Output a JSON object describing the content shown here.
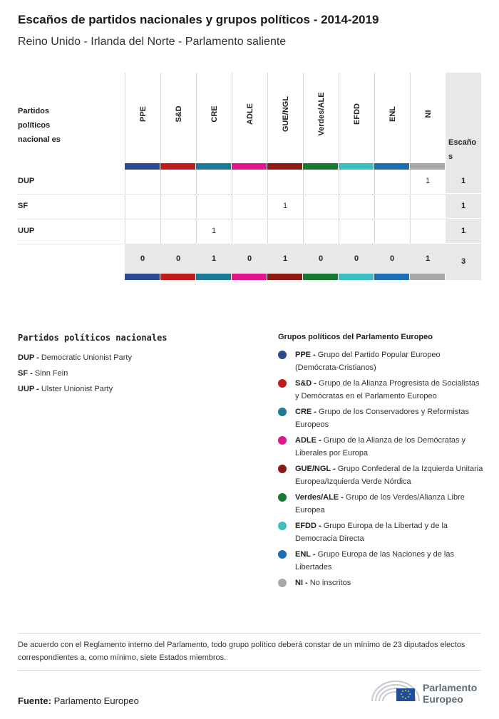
{
  "title": "Escaños de partidos nacionales y grupos políticos - 2014-2019",
  "subtitle": "Reino Unido - Irlanda del Norte - Parlamento saliente",
  "table": {
    "row_header": "Partidos políticos nacional es",
    "seats_header": "Escaño s",
    "groups": [
      {
        "label": "PPE",
        "color": "#2c4a8f"
      },
      {
        "label": "S&D",
        "color": "#c01c1c"
      },
      {
        "label": "CRE",
        "color": "#1a7a98"
      },
      {
        "label": "ADLE",
        "color": "#e0168a"
      },
      {
        "label": "GUE/NGL",
        "color": "#8b1a12"
      },
      {
        "label": "Verdes/ALE",
        "color": "#167a33"
      },
      {
        "label": "EFDD",
        "color": "#3bbfc0"
      },
      {
        "label": "ENL",
        "color": "#1b6fb5"
      },
      {
        "label": "NI",
        "color": "#a8a8a8"
      }
    ],
    "rows": [
      {
        "party": "DUP",
        "values": [
          "",
          "",
          "",
          "",
          "",
          "",
          "",
          "",
          "1"
        ],
        "seats": "1"
      },
      {
        "party": "SF",
        "values": [
          "",
          "",
          "",
          "",
          "1",
          "",
          "",
          "",
          ""
        ],
        "seats": "1"
      },
      {
        "party": "UUP",
        "values": [
          "",
          "",
          "1",
          "",
          "",
          "",
          "",
          "",
          ""
        ],
        "seats": "1"
      }
    ],
    "totals": [
      "0",
      "0",
      "1",
      "0",
      "1",
      "0",
      "0",
      "0",
      "1"
    ],
    "total_seats": "3"
  },
  "legend_national": {
    "heading": "Partidos políticos nacionales",
    "items": [
      {
        "abbr": "DUP -",
        "name": "Democratic Unionist Party"
      },
      {
        "abbr": "SF -",
        "name": "Sinn Fein"
      },
      {
        "abbr": "UUP -",
        "name": "Ulster Unionist Party"
      }
    ]
  },
  "legend_groups": {
    "heading": "Grupos políticos del Parlamento Europeo",
    "items": [
      {
        "abbr": "PPE -",
        "name": "Grupo del Partido Popular Europeo (Demócrata-Cristianos)",
        "color": "#2c4a8f"
      },
      {
        "abbr": "S&D -",
        "name": "Grupo de la Alianza Progresista de Socialistas y Demócratas en el Parlamento Europeo",
        "color": "#c01c1c"
      },
      {
        "abbr": "CRE -",
        "name": "Grupo de los Conservadores y Reformistas Europeos",
        "color": "#1a7a98"
      },
      {
        "abbr": "ADLE -",
        "name": "Grupo de la Alianza de los Demócratas y Liberales por Europa",
        "color": "#e0168a"
      },
      {
        "abbr": "GUE/NGL -",
        "name": "Grupo Confederal de la Izquierda Unitaria Europea/Izquierda Verde Nórdica",
        "color": "#8b1a12"
      },
      {
        "abbr": "Verdes/ALE -",
        "name": "Grupo de los Verdes/Alianza Libre Europea",
        "color": "#167a33"
      },
      {
        "abbr": "EFDD -",
        "name": "Grupo Europa de la Libertad y de la Democracia Directa",
        "color": "#3bbfc0"
      },
      {
        "abbr": "ENL -",
        "name": "Grupo Europa de las Naciones y de las Libertades",
        "color": "#1b6fb5"
      },
      {
        "abbr": "NI -",
        "name": "No inscritos",
        "color": "#a8a8a8"
      }
    ]
  },
  "note": "De acuerdo con el Reglamento interno del Parlamento, todo grupo político deberá constar de un mínimo de 23 diputados electos correspondientes a, como mínimo, siete Estados miembros.",
  "source": {
    "label": "Fuente:",
    "value": "Parlamento Europeo"
  },
  "logo": {
    "line1": "Parlamento",
    "line2": "Europeo"
  }
}
